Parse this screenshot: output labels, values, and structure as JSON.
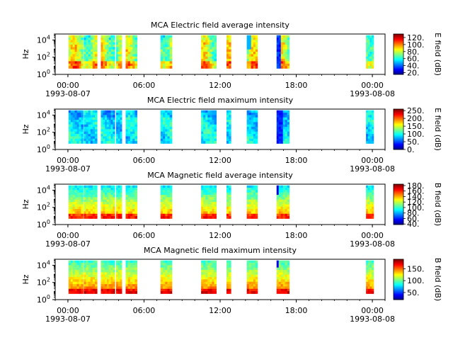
{
  "chart_data": [
    {
      "type": "heatmap",
      "title": "MCA  Electric field average intensity",
      "ylabel": "Hz",
      "cbar_label": "E field (dB)",
      "yscale": "log",
      "ylim_exp": [
        0,
        4.7
      ],
      "ytick_exps": [
        0,
        2,
        4
      ],
      "cbar_ticks": [
        "20.",
        "40.",
        "60.",
        "80.",
        "100.",
        "120."
      ],
      "cbar_range": [
        15,
        130
      ]
    },
    {
      "type": "heatmap",
      "title": "MCA  Electric field maximum intensity",
      "ylabel": "Hz",
      "cbar_label": "E field (dB)",
      "yscale": "log",
      "ylim_exp": [
        0,
        4.7
      ],
      "ytick_exps": [
        0,
        2,
        4
      ],
      "cbar_ticks": [
        "0.",
        "50.",
        "100.",
        "150.",
        "200.",
        "250."
      ],
      "cbar_range": [
        0,
        260
      ]
    },
    {
      "type": "heatmap",
      "title": "MCA  Magnetic field average intensity",
      "ylabel": "Hz",
      "cbar_label": "B field (dB)",
      "yscale": "log",
      "ylim_exp": [
        0,
        4.7
      ],
      "ytick_exps": [
        0,
        2,
        4
      ],
      "cbar_ticks": [
        "40.",
        "60.",
        "80.",
        "100.",
        "120.",
        "140.",
        "160.",
        "180."
      ],
      "cbar_range": [
        38,
        185
      ]
    },
    {
      "type": "heatmap",
      "title": "MCA  Magnetic field maximum intensity",
      "ylabel": "Hz",
      "cbar_label": "B field (dB)",
      "yscale": "log",
      "ylim_exp": [
        0,
        4.7
      ],
      "ytick_exps": [
        0,
        2,
        4
      ],
      "cbar_ticks": [
        "50.",
        "100.",
        "150."
      ],
      "cbar_range": [
        20,
        190
      ]
    }
  ],
  "x_axis": {
    "ticks": [
      {
        "hour": 0,
        "label": "00:00",
        "date": "1993-08-07"
      },
      {
        "hour": 6,
        "label": "06:00",
        "date": ""
      },
      {
        "hour": 12,
        "label": "12:00",
        "date": ""
      },
      {
        "hour": 18,
        "label": "18:00",
        "date": ""
      },
      {
        "hour": 24,
        "label": "00:00",
        "date": "1993-08-08"
      }
    ],
    "range_hours": [
      -1,
      25
    ],
    "minor_tick_hours": 1
  },
  "data_segments_hours": [
    [
      0.05,
      1.2
    ],
    [
      1.25,
      2.3
    ],
    [
      2.6,
      3.7
    ],
    [
      3.8,
      4.25
    ],
    [
      4.55,
      5.45
    ],
    [
      7.3,
      8.2
    ],
    [
      10.5,
      11.7
    ],
    [
      12.5,
      12.85
    ],
    [
      14.1,
      14.95
    ],
    [
      16.45,
      17.45
    ],
    [
      23.5,
      24.1
    ]
  ]
}
